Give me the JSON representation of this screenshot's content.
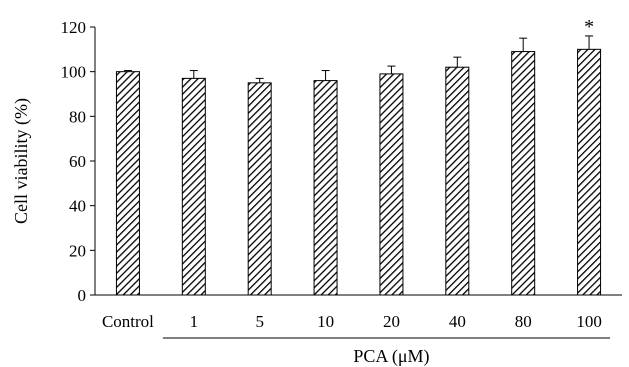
{
  "chart_data": {
    "type": "bar",
    "categories": [
      "Control",
      "1",
      "5",
      "10",
      "20",
      "40",
      "80",
      "100"
    ],
    "values": [
      100,
      97,
      95,
      96,
      99,
      102,
      109,
      110
    ],
    "errors": [
      0.5,
      3.5,
      2,
      4.5,
      3.5,
      4.5,
      6,
      6
    ],
    "significance": [
      "",
      "",
      "",
      "",
      "",
      "",
      "",
      "*"
    ],
    "ylabel": "Cell viability (%)",
    "xlabel": "PCA (μM)",
    "xlabel_group_categories": [
      "1",
      "5",
      "10",
      "20",
      "40",
      "80",
      "100"
    ],
    "ylim": [
      0,
      120
    ],
    "yticks": [
      0,
      20,
      40,
      60,
      80,
      100,
      120
    ],
    "bar_fill": "diagonal-hatch",
    "colors": {
      "bar_stroke": "#000000",
      "hatch": "#000000",
      "background": "#ffffff"
    },
    "grid": false,
    "legend": "none"
  }
}
